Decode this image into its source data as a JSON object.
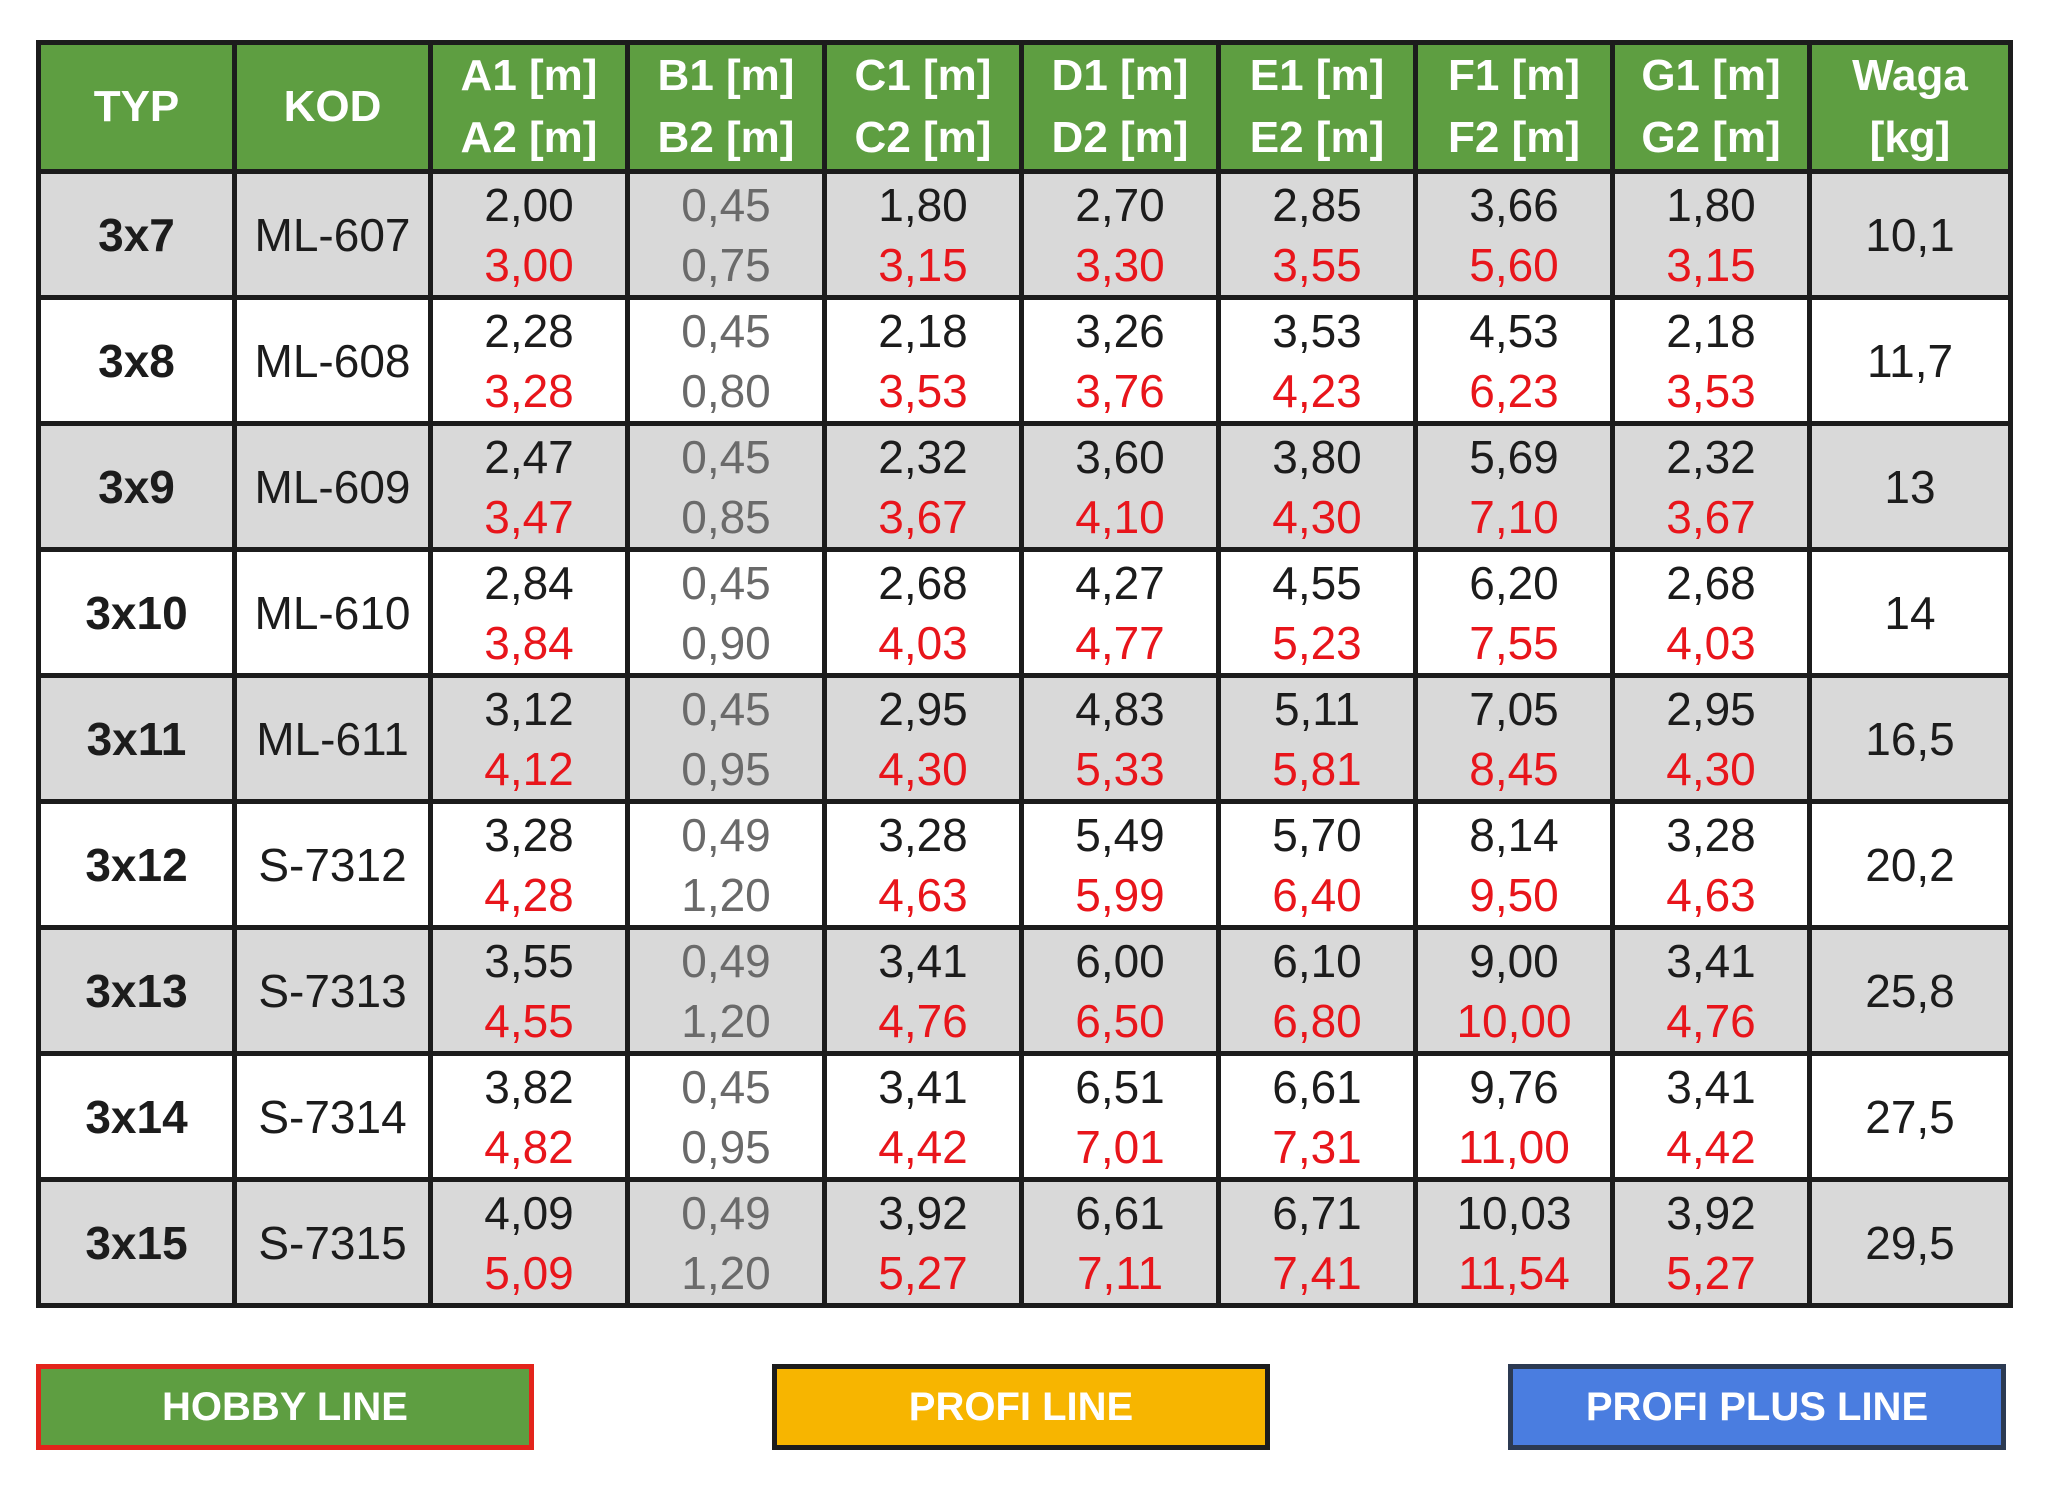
{
  "table": {
    "headers": [
      [
        "TYP",
        ""
      ],
      [
        "KOD",
        ""
      ],
      [
        "A1 [m]",
        "A2 [m]"
      ],
      [
        "B1 [m]",
        "B2 [m]"
      ],
      [
        "C1 [m]",
        "C2 [m]"
      ],
      [
        "D1 [m]",
        "D2 [m]"
      ],
      [
        "E1 [m]",
        "E2 [m]"
      ],
      [
        "F1 [m]",
        "F2 [m]"
      ],
      [
        "G1 [m]",
        "G2 [m]"
      ],
      [
        "Waga",
        "[kg]"
      ]
    ],
    "rows": [
      {
        "typ": "3x7",
        "kod": "ML-607",
        "a": [
          "2,00",
          "3,00"
        ],
        "b": [
          "0,45",
          "0,75"
        ],
        "c": [
          "1,80",
          "3,15"
        ],
        "d": [
          "2,70",
          "3,30"
        ],
        "e": [
          "2,85",
          "3,55"
        ],
        "f": [
          "3,66",
          "5,60"
        ],
        "g": [
          "1,80",
          "3,15"
        ],
        "waga": "10,1"
      },
      {
        "typ": "3x8",
        "kod": "ML-608",
        "a": [
          "2,28",
          "3,28"
        ],
        "b": [
          "0,45",
          "0,80"
        ],
        "c": [
          "2,18",
          "3,53"
        ],
        "d": [
          "3,26",
          "3,76"
        ],
        "e": [
          "3,53",
          "4,23"
        ],
        "f": [
          "4,53",
          "6,23"
        ],
        "g": [
          "2,18",
          "3,53"
        ],
        "waga": "11,7"
      },
      {
        "typ": "3x9",
        "kod": "ML-609",
        "a": [
          "2,47",
          "3,47"
        ],
        "b": [
          "0,45",
          "0,85"
        ],
        "c": [
          "2,32",
          "3,67"
        ],
        "d": [
          "3,60",
          "4,10"
        ],
        "e": [
          "3,80",
          "4,30"
        ],
        "f": [
          "5,69",
          "7,10"
        ],
        "g": [
          "2,32",
          "3,67"
        ],
        "waga": "13"
      },
      {
        "typ": "3x10",
        "kod": "ML-610",
        "a": [
          "2,84",
          "3,84"
        ],
        "b": [
          "0,45",
          "0,90"
        ],
        "c": [
          "2,68",
          "4,03"
        ],
        "d": [
          "4,27",
          "4,77"
        ],
        "e": [
          "4,55",
          "5,23"
        ],
        "f": [
          "6,20",
          "7,55"
        ],
        "g": [
          "2,68",
          "4,03"
        ],
        "waga": "14"
      },
      {
        "typ": "3x11",
        "kod": "ML-611",
        "a": [
          "3,12",
          "4,12"
        ],
        "b": [
          "0,45",
          "0,95"
        ],
        "c": [
          "2,95",
          "4,30"
        ],
        "d": [
          "4,83",
          "5,33"
        ],
        "e": [
          "5,11",
          "5,81"
        ],
        "f": [
          "7,05",
          "8,45"
        ],
        "g": [
          "2,95",
          "4,30"
        ],
        "waga": "16,5"
      },
      {
        "typ": "3x12",
        "kod": "S-7312",
        "a": [
          "3,28",
          "4,28"
        ],
        "b": [
          "0,49",
          "1,20"
        ],
        "c": [
          "3,28",
          "4,63"
        ],
        "d": [
          "5,49",
          "5,99"
        ],
        "e": [
          "5,70",
          "6,40"
        ],
        "f": [
          "8,14",
          "9,50"
        ],
        "g": [
          "3,28",
          "4,63"
        ],
        "waga": "20,2"
      },
      {
        "typ": "3x13",
        "kod": "S-7313",
        "a": [
          "3,55",
          "4,55"
        ],
        "b": [
          "0,49",
          "1,20"
        ],
        "c": [
          "3,41",
          "4,76"
        ],
        "d": [
          "6,00",
          "6,50"
        ],
        "e": [
          "6,10",
          "6,80"
        ],
        "f": [
          "9,00",
          "10,00"
        ],
        "g": [
          "3,41",
          "4,76"
        ],
        "waga": "25,8"
      },
      {
        "typ": "3x14",
        "kod": "S-7314",
        "a": [
          "3,82",
          "4,82"
        ],
        "b": [
          "0,45",
          "0,95"
        ],
        "c": [
          "3,41",
          "4,42"
        ],
        "d": [
          "6,51",
          "7,01"
        ],
        "e": [
          "6,61",
          "7,31"
        ],
        "f": [
          "9,76",
          "11,00"
        ],
        "g": [
          "3,41",
          "4,42"
        ],
        "waga": "27,5"
      },
      {
        "typ": "3x15",
        "kod": "S-7315",
        "a": [
          "4,09",
          "5,09"
        ],
        "b": [
          "0,49",
          "1,20"
        ],
        "c": [
          "3,92",
          "5,27"
        ],
        "d": [
          "6,61",
          "7,11"
        ],
        "e": [
          "6,71",
          "7,41"
        ],
        "f": [
          "10,03",
          "11,54"
        ],
        "g": [
          "3,92",
          "5,27"
        ],
        "waga": "29,5"
      }
    ]
  },
  "legend": {
    "hobby": "HOBBY LINE",
    "profi": "PROFI LINE",
    "profi_plus": "PROFI PLUS LINE"
  },
  "colors": {
    "header_green": "#5e9e41",
    "second_value_red": "#e8151b",
    "b_column_gray": "#6a6a6a",
    "row_shade": "#d9d9d9",
    "profi_yellow": "#f7b500",
    "profi_plus_blue": "#4a7de0",
    "hobby_border_red": "#e3241b"
  }
}
